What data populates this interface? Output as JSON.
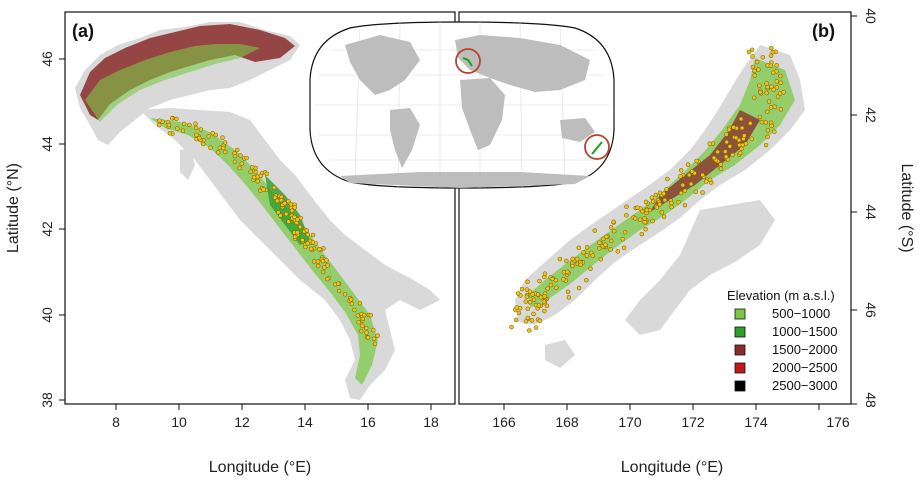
{
  "panels": {
    "a": {
      "letter": "(a)",
      "xlabel": "Longitude (°E)",
      "ylabel": "Latitude (°N)",
      "xticks": [
        "8",
        "10",
        "12",
        "14",
        "16",
        "18"
      ],
      "yticks": [
        "38",
        "40",
        "42",
        "44",
        "46"
      ]
    },
    "b": {
      "letter": "(b)",
      "xlabel": "Longitude (°E)",
      "ylabel": "Latitude (°S)",
      "xticks": [
        "166",
        "168",
        "170",
        "172",
        "174",
        "176"
      ],
      "yticks": [
        "40",
        "42",
        "44",
        "46",
        "48"
      ]
    }
  },
  "legend": {
    "title": "Elevation (m a.s.l.)",
    "items": [
      {
        "label": "500−1000",
        "color": "#7cc846"
      },
      {
        "label": "1000−1500",
        "color": "#2e9e2e"
      },
      {
        "label": "1500−2000",
        "color": "#8a2a2a"
      },
      {
        "label": "2000−2500",
        "color": "#c41818"
      },
      {
        "label": "2500−3000",
        "color": "#000000"
      }
    ]
  },
  "colors": {
    "land": "#d9d9d9",
    "lowland_green": "#7cc846",
    "mid_green": "#2e9e2e",
    "high_brown": "#8a2a2a",
    "peak_white": "#f2f2f2",
    "site_dot_fill": "#f2c21a",
    "site_dot_stroke": "#6b5a00",
    "highlight_circle": "#b5452b"
  }
}
